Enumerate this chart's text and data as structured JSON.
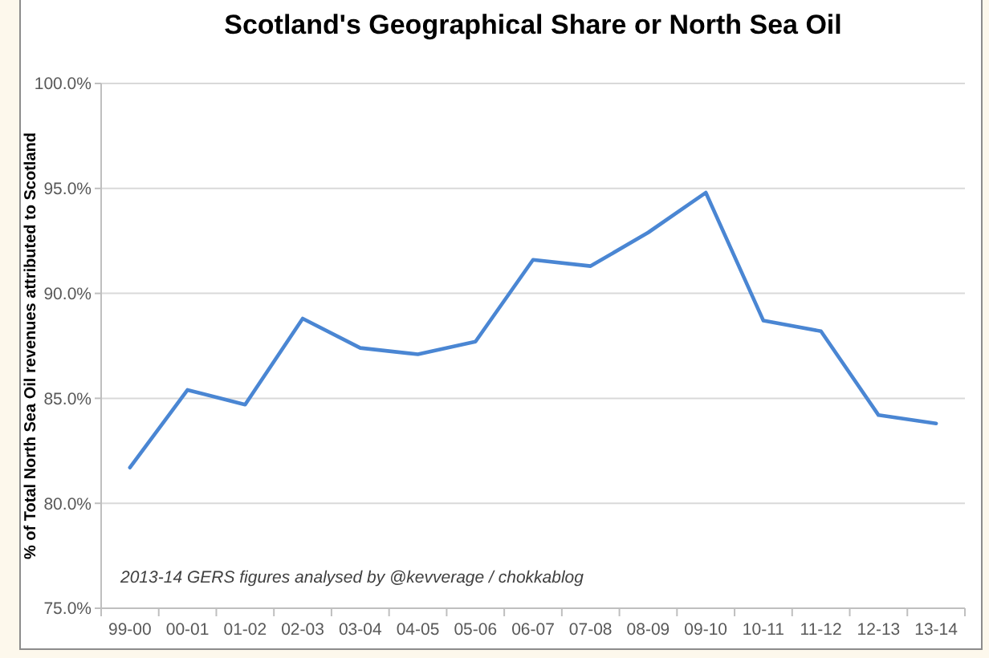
{
  "chart_data": {
    "type": "line",
    "title": "Scotland's Geographical Share or North Sea Oil",
    "ylabel": "% of Total North Sea Oil revenues attributed to Scotland",
    "annotations": [
      "2013-14 GERS figures analysed by @kevverage / chokkablog"
    ],
    "categories": [
      "99-00",
      "00-01",
      "01-02",
      "02-03",
      "03-04",
      "04-05",
      "05-06",
      "06-07",
      "07-08",
      "08-09",
      "09-10",
      "10-11",
      "11-12",
      "12-13",
      "13-14"
    ],
    "series": [
      {
        "color": "#4a86d3",
        "values": [
          81.7,
          85.4,
          84.7,
          88.8,
          87.4,
          87.1,
          87.7,
          91.6,
          91.3,
          92.9,
          94.8,
          88.7,
          88.2,
          84.2,
          83.8
        ]
      }
    ],
    "ylim": [
      75,
      100
    ],
    "yticks": [
      {
        "value": 75,
        "label": "75.0%"
      },
      {
        "value": 80,
        "label": "80.0%"
      },
      {
        "value": 85,
        "label": "85.0%"
      },
      {
        "value": 90,
        "label": "90.0%"
      },
      {
        "value": 95,
        "label": "95.0%"
      },
      {
        "value": 100,
        "label": "100.0%"
      }
    ],
    "grid": "y",
    "marker": "none"
  }
}
